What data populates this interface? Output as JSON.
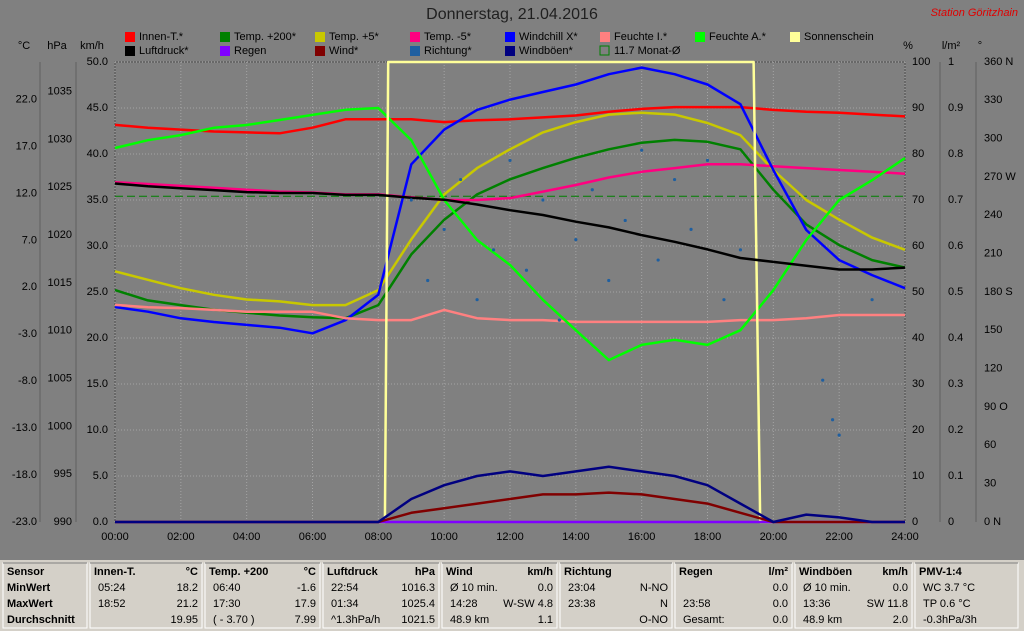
{
  "chart_data": {
    "type": "line",
    "title": "Donnerstag, 21.04.2016",
    "station": "Station Göritzhain",
    "x": [
      0,
      1,
      2,
      3,
      4,
      5,
      6,
      7,
      8,
      9,
      10,
      11,
      12,
      13,
      14,
      15,
      16,
      17,
      18,
      19,
      20,
      21,
      22,
      23,
      24
    ],
    "xlim": [
      0,
      24
    ],
    "xticks": [
      {
        "value": 0,
        "label": "00:00"
      },
      {
        "value": 2,
        "label": "02:00"
      },
      {
        "value": 4,
        "label": "04:00"
      },
      {
        "value": 6,
        "label": "06:00"
      },
      {
        "value": 8,
        "label": "08:00"
      },
      {
        "value": 10,
        "label": "10:00"
      },
      {
        "value": 12,
        "label": "12:00"
      },
      {
        "value": 14,
        "label": "14:00"
      },
      {
        "value": 16,
        "label": "16:00"
      },
      {
        "value": 18,
        "label": "18:00"
      },
      {
        "value": 20,
        "label": "20:00"
      },
      {
        "value": 22,
        "label": "22:00"
      },
      {
        "value": 24,
        "label": "24:00"
      }
    ],
    "axes": [
      {
        "unit": "°C",
        "lim": [
          -23,
          26
        ],
        "ticks": [
          {
            "value": -23,
            "label": "-23.0"
          },
          {
            "value": -18,
            "label": "-18.0"
          },
          {
            "value": -13,
            "label": "-13.0"
          },
          {
            "value": -8,
            "label": "-8.0"
          },
          {
            "value": -3,
            "label": "-3.0"
          },
          {
            "value": 2,
            "label": "2.0"
          },
          {
            "value": 7,
            "label": "7.0"
          },
          {
            "value": 12,
            "label": "12.0"
          },
          {
            "value": 17,
            "label": "17.0"
          },
          {
            "value": 22,
            "label": "22.0"
          }
        ]
      },
      {
        "unit": "hPa",
        "lim": [
          990,
          1038.1
        ],
        "ticks": [
          990,
          995,
          1000,
          1005,
          1010,
          1015,
          1020,
          1025,
          1030,
          1035
        ]
      },
      {
        "unit": "km/h",
        "lim": [
          0,
          50
        ],
        "grid": true,
        "ticks": [
          {
            "value": 0,
            "label": "0.0"
          },
          {
            "value": 5,
            "label": "5.0"
          },
          {
            "value": 10,
            "label": "10.0"
          },
          {
            "value": 15,
            "label": "15.0"
          },
          {
            "value": 20,
            "label": "20.0"
          },
          {
            "value": 25,
            "label": "25.0"
          },
          {
            "value": 30,
            "label": "30.0"
          },
          {
            "value": 35,
            "label": "35.0"
          },
          {
            "value": 40,
            "label": "40.0"
          },
          {
            "value": 45,
            "label": "45.0"
          },
          {
            "value": 50,
            "label": "50.0"
          }
        ]
      },
      {
        "unit": "%",
        "lim": [
          0,
          100
        ],
        "ticks": [
          0,
          10,
          20,
          30,
          40,
          50,
          60,
          70,
          80,
          90,
          100
        ]
      },
      {
        "unit": "l/m²",
        "lim": [
          0,
          1
        ],
        "ticks": [
          0,
          0.1,
          0.2,
          0.3,
          0.4,
          0.5,
          0.6,
          0.7,
          0.8,
          0.9,
          1
        ]
      },
      {
        "unit": "°",
        "lim": [
          0,
          360
        ],
        "ticks": [
          {
            "value": 0,
            "label": "0  N"
          },
          30,
          60,
          {
            "value": 90,
            "label": "90 O"
          },
          120,
          150,
          {
            "value": 180,
            "label": "180 S"
          },
          210,
          240,
          {
            "value": 270,
            "label": "270 W"
          },
          300,
          330,
          {
            "value": 360,
            "label": "360 N"
          }
        ]
      }
    ],
    "series": [
      {
        "name": "Innen-T.*",
        "color": "#ff0000",
        "axis": 0,
        "values": [
          19.3,
          19.0,
          18.8,
          18.6,
          18.5,
          18.4,
          19.0,
          19.9,
          19.9,
          19.9,
          19.6,
          19.8,
          19.9,
          20.1,
          20.3,
          20.7,
          21.0,
          21.2,
          21.2,
          21.2,
          20.9,
          20.7,
          20.6,
          20.4,
          20.2
        ]
      },
      {
        "name": "Temp. +200*",
        "color": "#008000",
        "axis": 0,
        "values": [
          1.7,
          0.6,
          0.1,
          -0.4,
          -0.7,
          -1.0,
          -1.2,
          -1.3,
          0.1,
          5.5,
          9.2,
          11.9,
          13.5,
          14.7,
          15.8,
          16.7,
          17.4,
          17.7,
          17.5,
          16.7,
          12.4,
          8.7,
          6.5,
          4.9,
          4.1
        ]
      },
      {
        "name": "Temp. +5*",
        "color": "#c8c800",
        "axis": 0,
        "values": [
          3.7,
          2.8,
          1.9,
          1.2,
          0.7,
          0.5,
          0.1,
          0.1,
          1.7,
          7.1,
          11.9,
          14.7,
          16.7,
          18.5,
          19.6,
          20.4,
          20.6,
          20.4,
          19.5,
          18.2,
          14.5,
          11.3,
          9.2,
          7.3,
          6.0
        ]
      },
      {
        "name": "Temp. -5*",
        "color": "#ff0080",
        "axis": 0,
        "values": [
          13.2,
          13.0,
          12.8,
          12.6,
          12.4,
          12.2,
          12.1,
          11.9,
          11.9,
          11.6,
          11.3,
          11.3,
          11.5,
          12.2,
          12.9,
          13.7,
          14.3,
          14.7,
          15.1,
          15.1,
          14.9,
          14.7,
          14.5,
          14.3,
          14.1
        ]
      },
      {
        "name": "Windchill X*",
        "color": "#0000ff",
        "axis": 0,
        "values": [
          -0.1,
          -0.6,
          -1.3,
          -1.7,
          -2.0,
          -2.3,
          -2.9,
          -1.5,
          1.2,
          15.1,
          18.8,
          20.9,
          22.0,
          22.8,
          23.6,
          24.7,
          25.4,
          24.7,
          23.6,
          21.5,
          14.5,
          8.1,
          4.9,
          3.3,
          1.9
        ]
      },
      {
        "name": "Feuchte I.*",
        "color": "#ff8080",
        "axis": 3,
        "values": [
          47.2,
          46.7,
          46.5,
          46.1,
          45.7,
          45.7,
          45.7,
          44.3,
          43.9,
          43.9,
          46.1,
          44.3,
          43.9,
          43.9,
          43.5,
          43.5,
          43.5,
          43.5,
          43.5,
          43.9,
          43.9,
          44.3,
          45.0,
          45.0,
          45.0
        ]
      },
      {
        "name": "Feuchte A.*",
        "color": "#00ff00",
        "axis": 3,
        "values": [
          81.3,
          83.0,
          84.1,
          85.7,
          86.3,
          87.4,
          88.5,
          89.6,
          90.0,
          83.0,
          70.0,
          61.3,
          55.9,
          48.3,
          41.7,
          35.2,
          38.5,
          39.6,
          38.5,
          41.7,
          50.4,
          61.3,
          70.0,
          74.3,
          79.1
        ]
      },
      {
        "name": "Sonnenschein",
        "color": "#ffff99",
        "axis": 3,
        "x": [
          0,
          8.2,
          8.3,
          19.4,
          19.6,
          24
        ],
        "values": [
          0,
          0,
          100,
          100,
          0,
          0
        ]
      },
      {
        "name": "Luftdruck*",
        "color": "#000000",
        "axis": 1,
        "values": [
          1025.4,
          1025.1,
          1024.9,
          1024.7,
          1024.5,
          1024.4,
          1024.4,
          1024.2,
          1024.2,
          1023.9,
          1023.7,
          1023.2,
          1022.6,
          1022.1,
          1021.4,
          1020.8,
          1020.0,
          1019.3,
          1018.5,
          1017.6,
          1017.2,
          1016.8,
          1016.4,
          1016.4,
          1016.6
        ]
      },
      {
        "name": "Regen",
        "color": "#8000ff",
        "axis": 4,
        "values": [
          0,
          0,
          0,
          0,
          0,
          0,
          0,
          0,
          0,
          0,
          0,
          0,
          0,
          0,
          0,
          0,
          0,
          0,
          0,
          0,
          0,
          0,
          0,
          0,
          0
        ]
      },
      {
        "name": "Wind*",
        "color": "#800000",
        "axis": 2,
        "values": [
          0,
          0,
          0,
          0,
          0,
          0,
          0,
          0,
          0,
          1.0,
          1.5,
          2.0,
          2.5,
          3.0,
          3.0,
          3.2,
          3.0,
          2.5,
          2.0,
          1.0,
          0,
          0,
          0,
          0,
          0
        ]
      },
      {
        "name": "Richtung*",
        "color": "#1f5fa0",
        "axis": 5,
        "marker": "dots",
        "x": [
          9,
          9.5,
          10,
          10.5,
          11,
          11.5,
          12,
          12.5,
          13,
          13.5,
          14,
          14.5,
          15,
          15.5,
          16,
          16.5,
          17,
          17.5,
          18,
          18.5,
          19,
          21.5,
          21.8,
          22,
          23
        ],
        "values": [
          252,
          189,
          229,
          268,
          174,
          213,
          283,
          197,
          252,
          158,
          221,
          260,
          189,
          236,
          291,
          205,
          268,
          229,
          283,
          174,
          213,
          111,
          80,
          68,
          174
        ]
      },
      {
        "name": "Windböen*",
        "color": "#000080",
        "axis": 2,
        "values": [
          0,
          0,
          0,
          0,
          0,
          0,
          0,
          0,
          0,
          2.5,
          4.0,
          5.0,
          5.5,
          5.0,
          5.5,
          6.0,
          5.5,
          5.0,
          4.0,
          2.0,
          0,
          0.8,
          0.5,
          0,
          0
        ]
      }
    ],
    "reference_line": {
      "label": "11.7 Monat-Ø",
      "value": 11.7,
      "axis": 0,
      "color": "#008000"
    }
  },
  "stats": {
    "groups": [
      {
        "title": "Sensor",
        "rows": [
          {
            "left": "MinWert"
          },
          {
            "left": "MaxWert"
          },
          {
            "left": "Durchschnitt"
          }
        ]
      },
      {
        "title": "Innen-T.",
        "unit": "°C",
        "rows": [
          {
            "left": "05:24",
            "right": "18.2"
          },
          {
            "left": "18:52",
            "right": "21.2"
          },
          {
            "right": "19.95"
          }
        ]
      },
      {
        "title": "Temp. +200",
        "unit": "°C",
        "rows": [
          {
            "left": "06:40",
            "right": "-1.6"
          },
          {
            "left": "17:30",
            "right": "17.9"
          },
          {
            "left": "( - 3.70 )",
            "right": "7.99"
          }
        ]
      },
      {
        "title": "Luftdruck",
        "unit": "hPa",
        "rows": [
          {
            "left": "22:54",
            "right": "1016.3"
          },
          {
            "left": "01:34",
            "right": "1025.4"
          },
          {
            "left": "^1.3hPa/h",
            "right": "1021.5"
          }
        ]
      },
      {
        "title": "Wind",
        "unit": "km/h",
        "rows": [
          {
            "left": "Ø 10 min.",
            "right": "0.0"
          },
          {
            "left": "14:28",
            "right": "W-SW 4.8"
          },
          {
            "left": "48.9 km",
            "right": "1.1"
          }
        ]
      },
      {
        "title": "Richtung",
        "rows": [
          {
            "left": "23:04",
            "right": "N-NO"
          },
          {
            "left": "23:38",
            "right": "N"
          },
          {
            "right": "O-NO"
          }
        ]
      },
      {
        "title": "Regen",
        "unit": "l/m²",
        "rows": [
          {
            "right": "0.0"
          },
          {
            "left": "23:58",
            "right": "0.0"
          },
          {
            "left": "Gesamt:",
            "right": "0.0"
          }
        ]
      },
      {
        "title": "Windböen",
        "unit": "km/h",
        "rows": [
          {
            "left": "Ø 10 min.",
            "right": "0.0"
          },
          {
            "left": "13:36",
            "right": "SW 11.8"
          },
          {
            "left": "48.9 km",
            "right": "2.0"
          }
        ]
      },
      {
        "title": "PMV-1:4",
        "rows": [
          {
            "left": "WC 3.7 °C"
          },
          {
            "left": "TP 0.6 °C"
          },
          {
            "left": "-0.3hPa/3h"
          }
        ]
      }
    ]
  }
}
